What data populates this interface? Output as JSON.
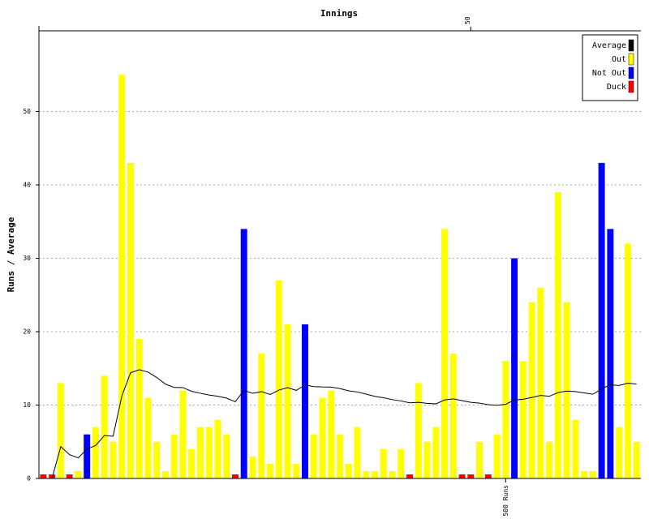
{
  "chart_data": {
    "type": "bar",
    "title": "Innings",
    "ylabel": "Runs / Average",
    "x": [
      1,
      2,
      3,
      4,
      5,
      6,
      7,
      8,
      9,
      10,
      11,
      12,
      13,
      14,
      15,
      16,
      17,
      18,
      19,
      20,
      21,
      22,
      23,
      24,
      25,
      26,
      27,
      28,
      29,
      30,
      31,
      32,
      33,
      34,
      35,
      36,
      37,
      38,
      39,
      40,
      41,
      42,
      43,
      44,
      45,
      46,
      47,
      48,
      49,
      50,
      51,
      52,
      53,
      54,
      55,
      56,
      57,
      58,
      59,
      60,
      61,
      62,
      63,
      64,
      65,
      66,
      67,
      68,
      69
    ],
    "xlim": [
      0.5,
      69.5
    ],
    "top_xticks": [
      50
    ],
    "annotations": [
      {
        "text": "500 Runs",
        "x": 54
      }
    ],
    "ylim": [
      0,
      61
    ],
    "yticks": [
      0,
      10,
      20,
      30,
      40,
      50
    ],
    "grid": true,
    "series": [
      {
        "name": "Average",
        "color": "#000000",
        "kind": "line",
        "values": [
          0,
          0,
          4.33,
          3.25,
          2.8,
          4,
          4.5,
          5.86,
          5.75,
          11.22,
          14.4,
          14.82,
          14.5,
          13.77,
          12.86,
          12.4,
          12.38,
          11.88,
          11.61,
          11.37,
          11.2,
          10.95,
          10.45,
          12,
          11.61,
          11.83,
          11.44,
          12.04,
          12.37,
          12,
          12.75,
          12.52,
          12.47,
          12.45,
          12.25,
          11.94,
          11.79,
          11.49,
          11.19,
          11,
          10.74,
          10.56,
          10.3,
          10.37,
          10.24,
          10.16,
          10.7,
          10.84,
          10.61,
          10.38,
          10.27,
          10.06,
          9.98,
          10.1,
          10.69,
          10.79,
          11.04,
          11.31,
          11.2,
          11.7,
          11.91,
          11.84,
          11.66,
          11.48,
          12.2,
          12.77,
          12.67,
          12.98,
          12.86
        ]
      },
      {
        "name": "Out",
        "color": "#ffff00",
        "kind": "bar",
        "values": [
          null,
          null,
          13,
          null,
          1,
          null,
          7,
          14,
          5,
          55,
          43,
          19,
          11,
          5,
          1,
          6,
          12,
          4,
          7,
          7,
          8,
          6,
          null,
          null,
          3,
          17,
          2,
          27,
          21,
          2,
          null,
          6,
          11,
          12,
          6,
          2,
          7,
          1,
          1,
          4,
          1,
          4,
          null,
          13,
          5,
          7,
          34,
          17,
          null,
          null,
          5,
          null,
          6,
          16,
          null,
          16,
          24,
          26,
          5,
          39,
          24,
          8,
          1,
          1,
          null,
          null,
          7,
          32,
          5
        ]
      },
      {
        "name": "Not Out",
        "color": "#0000ff",
        "kind": "bar",
        "values": [
          null,
          null,
          null,
          null,
          null,
          6,
          null,
          null,
          null,
          null,
          null,
          null,
          null,
          null,
          null,
          null,
          null,
          null,
          null,
          null,
          null,
          null,
          null,
          34,
          null,
          null,
          null,
          null,
          null,
          null,
          21,
          null,
          null,
          null,
          null,
          null,
          null,
          null,
          null,
          null,
          null,
          null,
          null,
          null,
          null,
          null,
          null,
          null,
          null,
          null,
          null,
          null,
          null,
          null,
          30,
          null,
          null,
          null,
          null,
          null,
          null,
          null,
          null,
          null,
          43,
          34,
          null,
          null,
          null
        ]
      },
      {
        "name": "Duck",
        "color": "#ff0000",
        "kind": "bar",
        "values": [
          0,
          0,
          null,
          0,
          null,
          null,
          null,
          null,
          null,
          null,
          null,
          null,
          null,
          null,
          null,
          null,
          null,
          null,
          null,
          null,
          null,
          null,
          0,
          null,
          null,
          null,
          null,
          null,
          null,
          null,
          null,
          null,
          null,
          null,
          null,
          null,
          null,
          null,
          null,
          null,
          null,
          null,
          0,
          null,
          null,
          null,
          null,
          null,
          0,
          0,
          null,
          0,
          null,
          null,
          null,
          null,
          null,
          null,
          null,
          null,
          null,
          null,
          null,
          null,
          null,
          null,
          null,
          null,
          null
        ]
      }
    ],
    "legend": "upper right"
  }
}
